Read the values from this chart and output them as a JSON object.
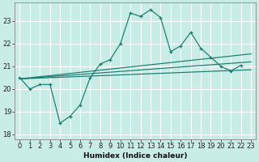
{
  "xlabel": "Humidex (Indice chaleur)",
  "bg_color": "#c8ece6",
  "grid_color": "#ffffff",
  "line_color": "#1a7a6e",
  "xlim": [
    -0.5,
    23.5
  ],
  "ylim": [
    17.8,
    23.8
  ],
  "yticks": [
    18,
    19,
    20,
    21,
    22,
    23
  ],
  "xticks": [
    0,
    1,
    2,
    3,
    4,
    5,
    6,
    7,
    8,
    9,
    10,
    11,
    12,
    13,
    14,
    15,
    16,
    17,
    18,
    19,
    20,
    21,
    22,
    23
  ],
  "xtick_labels": [
    "0",
    "1",
    "2",
    "3",
    "4",
    "5",
    "6",
    "7",
    "8",
    "9",
    "10",
    "11",
    "12",
    "13",
    "14",
    "15",
    "16",
    "17",
    "18",
    "19",
    "20",
    "21",
    "22",
    "23"
  ],
  "jagged_x": [
    0,
    1,
    2,
    3,
    4,
    5,
    6,
    7,
    8,
    9,
    10,
    11,
    12,
    13,
    14,
    15,
    16,
    17,
    18,
    19,
    20,
    21,
    22
  ],
  "jagged_y": [
    20.5,
    20.0,
    20.2,
    20.2,
    18.5,
    18.8,
    19.3,
    20.5,
    21.1,
    21.3,
    22.0,
    23.35,
    23.2,
    23.5,
    23.15,
    21.65,
    21.9,
    22.5,
    21.8,
    21.4,
    21.0,
    20.8,
    21.05
  ],
  "reg_lines": [
    {
      "x0": 0,
      "y0": 20.45,
      "x1": 23,
      "y1": 20.85
    },
    {
      "x0": 0,
      "y0": 20.45,
      "x1": 23,
      "y1": 21.2
    },
    {
      "x0": 0,
      "y0": 20.45,
      "x1": 23,
      "y1": 21.55
    }
  ]
}
